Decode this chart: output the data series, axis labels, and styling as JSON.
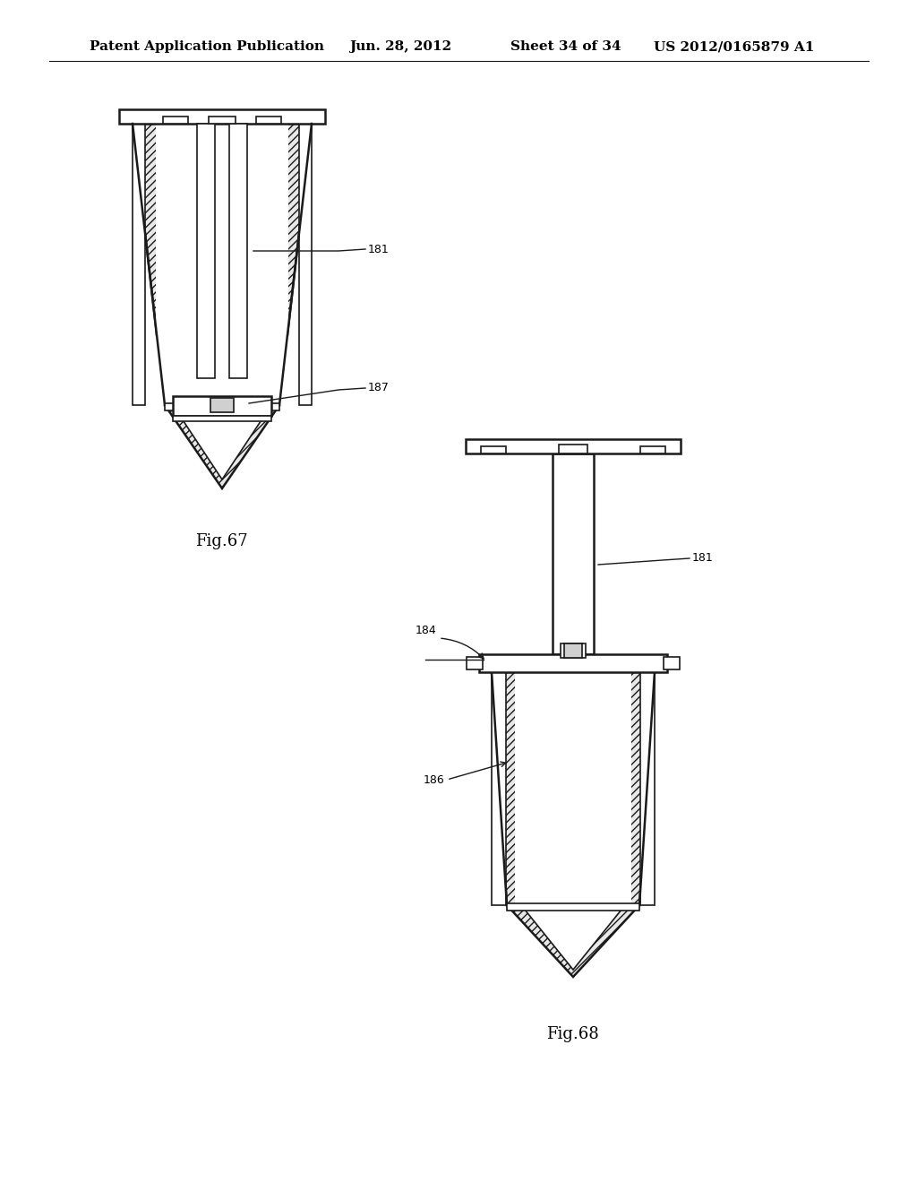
{
  "background_color": "#ffffff",
  "line_color": "#1a1a1a",
  "header_text": "Patent Application Publication",
  "header_date": "Jun. 28, 2012",
  "header_sheet": "Sheet 34 of 34",
  "header_patent": "US 2012/0165879 A1",
  "fig67_label": "Fig.67",
  "fig68_label": "Fig.68",
  "label_181_fig67": "181",
  "label_187_fig67": "187",
  "label_181_fig68": "181",
  "label_184_fig68": "184",
  "label_186_fig68": "186"
}
